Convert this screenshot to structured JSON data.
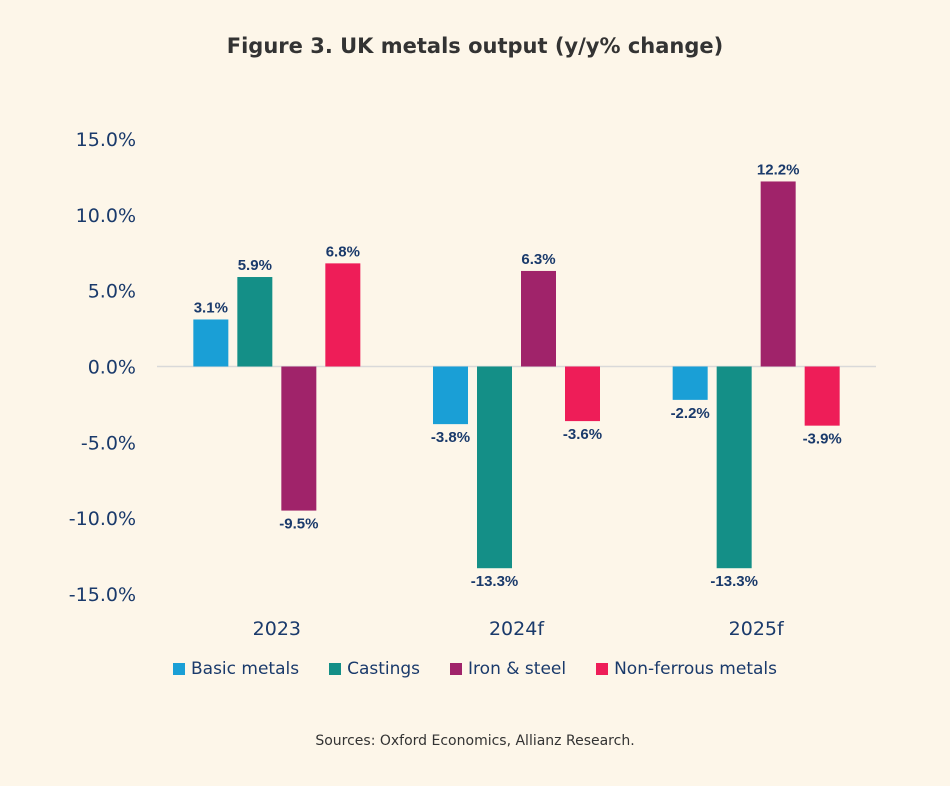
{
  "chart_data": {
    "type": "bar",
    "title": "Figure 3. UK metals output (y/y% change)",
    "categories": [
      "2023",
      "2024f",
      "2025f"
    ],
    "series": [
      {
        "name": "Basic metals",
        "color": "#1a9fd6",
        "values": [
          3.1,
          -3.8,
          -2.2
        ],
        "labels": [
          "3.1%",
          "-3.8%",
          "-2.2%"
        ]
      },
      {
        "name": "Castings",
        "color": "#148f87",
        "values": [
          5.9,
          -13.3,
          -13.3
        ],
        "labels": [
          "5.9%",
          "-13.3%",
          "-13.3%"
        ]
      },
      {
        "name": "Iron & steel",
        "color": "#a0236a",
        "values": [
          -9.5,
          6.3,
          12.2
        ],
        "labels": [
          "-9.5%",
          "6.3%",
          "12.2%"
        ]
      },
      {
        "name": "Non-ferrous metals",
        "color": "#ee1d58",
        "values": [
          6.8,
          -3.6,
          -3.9
        ],
        "labels": [
          "6.8%",
          "-3.6%",
          "-3.9%"
        ]
      }
    ],
    "ylim": [
      -15,
      15
    ],
    "yticks": [
      15,
      10,
      5,
      0,
      -5,
      -10,
      -15
    ],
    "ytick_labels": [
      "15.0%",
      "10.0%",
      "5.0%",
      "0.0%",
      "-5.0%",
      "-10.0%",
      "-15.0%"
    ],
    "grid": false,
    "legend_position": "bottom",
    "source": "Sources: Oxford Economics, Allianz Research."
  }
}
